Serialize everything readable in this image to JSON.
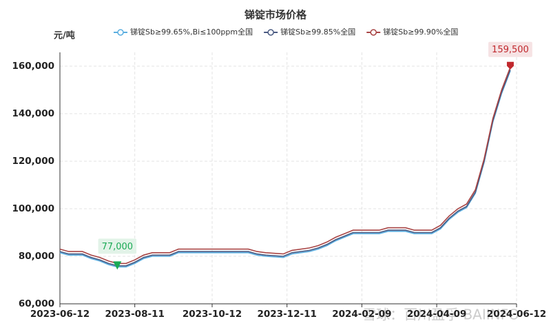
{
  "chart_data": {
    "type": "line",
    "title": "锑锭市场价格",
    "y_axis_label": "元/吨",
    "watermark": "雪球：百川盈孚 BAIINFO",
    "x": [
      "2023-06-12",
      "2023-06-19",
      "2023-06-30",
      "2023-07-07",
      "2023-07-14",
      "2023-07-21",
      "2023-07-28",
      "2023-08-04",
      "2023-08-11",
      "2023-08-18",
      "2023-08-25",
      "2023-09-08",
      "2023-09-15",
      "2023-10-12",
      "2023-11-10",
      "2023-11-17",
      "2023-11-24",
      "2023-12-08",
      "2023-12-15",
      "2023-12-29",
      "2024-01-05",
      "2024-01-12",
      "2024-01-19",
      "2024-01-26",
      "2024-02-02",
      "2024-02-23",
      "2024-03-01",
      "2024-03-15",
      "2024-03-22",
      "2024-04-05",
      "2024-04-12",
      "2024-04-19",
      "2024-04-26",
      "2024-05-03",
      "2024-05-10",
      "2024-05-17",
      "2024-05-24",
      "2024-05-31",
      "2024-06-07"
    ],
    "xlim": [
      "2023-06-12",
      "2024-06-12"
    ],
    "xticks": [
      "2023-06-12",
      "2023-08-11",
      "2023-10-12",
      "2023-12-11",
      "2024-02-09",
      "2024-04-09",
      "2024-06-12"
    ],
    "ylim": [
      60000,
      160000
    ],
    "yticks": [
      {
        "value": 60000,
        "label": "60,000"
      },
      {
        "value": 80000,
        "label": "80,000"
      },
      {
        "value": 100000,
        "label": "100,000"
      },
      {
        "value": 120000,
        "label": "120,000"
      },
      {
        "value": 140000,
        "label": "140,000"
      },
      {
        "value": 160000,
        "label": "160,000"
      }
    ],
    "grid": true,
    "series": [
      {
        "name": "锑锭Sb≥99.65%,Bi≤100ppm全国",
        "color": "#5aaee0",
        "values": [
          81500,
          80500,
          80500,
          79000,
          78000,
          76500,
          75500,
          75500,
          77000,
          79000,
          80000,
          80000,
          81500,
          81500,
          81500,
          80500,
          80000,
          79500,
          81000,
          82000,
          83000,
          84500,
          86500,
          88000,
          89500,
          89500,
          90500,
          90500,
          89500,
          89500,
          91500,
          95500,
          98500,
          100500,
          106500,
          119500,
          136500,
          148500,
          158000
        ]
      },
      {
        "name": "锑锭Sb≥99.85%全国",
        "color": "#4a5a82",
        "values": [
          82000,
          81000,
          81000,
          79500,
          78500,
          77000,
          76000,
          76000,
          77500,
          79500,
          80500,
          80500,
          82000,
          82000,
          82000,
          81000,
          80500,
          80000,
          81500,
          82500,
          83500,
          85000,
          87000,
          88500,
          90000,
          90000,
          91000,
          91000,
          90000,
          90000,
          92000,
          96000,
          99000,
          101000,
          107000,
          120000,
          137000,
          149000,
          158500
        ]
      },
      {
        "name": "锑锭Sb≥99.90%全国",
        "color": "#a84444",
        "values": [
          83000,
          82000,
          82000,
          80500,
          79500,
          78000,
          77000,
          77000,
          78500,
          80500,
          81500,
          81500,
          83000,
          83000,
          83000,
          82000,
          81500,
          81000,
          82500,
          83500,
          84500,
          86000,
          88000,
          89500,
          91000,
          91000,
          92000,
          92000,
          91000,
          91000,
          93000,
          97000,
          100000,
          102000,
          108000,
          121000,
          138000,
          150000,
          159500
        ],
        "value_labels": [
          null,
          null,
          null,
          null,
          null,
          null,
          "77,000",
          null,
          null,
          null,
          null,
          null,
          null,
          null,
          null,
          null,
          null,
          null,
          null,
          null,
          null,
          null,
          null,
          null,
          null,
          null,
          null,
          null,
          null,
          null,
          null,
          null,
          null,
          null,
          null,
          null,
          null,
          null,
          "159,500"
        ]
      }
    ]
  }
}
